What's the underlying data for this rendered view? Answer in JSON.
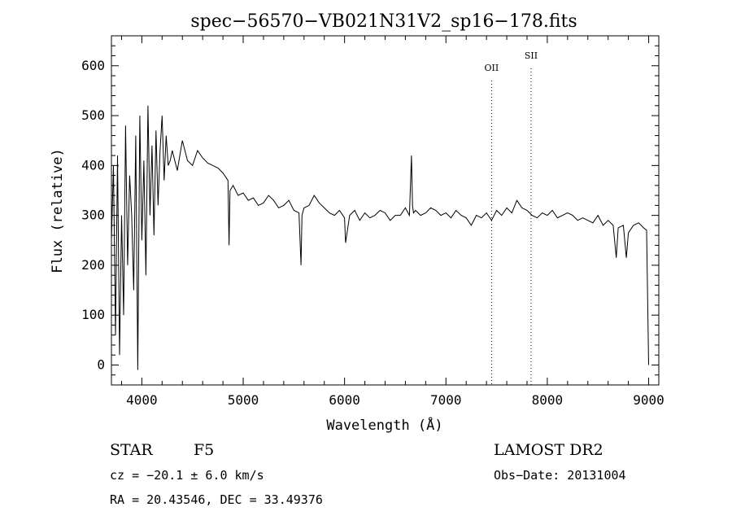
{
  "chart_data": {
    "type": "line",
    "title": "spec−56570−VB021N31V2_sp16−178.fits",
    "xlabel": "Wavelength (Å)",
    "ylabel": "Flux (relative)",
    "xlim": [
      3700,
      9100
    ],
    "ylim": [
      -40,
      660
    ],
    "xticks": [
      4000,
      5000,
      6000,
      7000,
      8000,
      9000
    ],
    "yticks": [
      0,
      100,
      200,
      300,
      400,
      500,
      600
    ],
    "grid": false,
    "lines": [
      {
        "label": "OII",
        "x": 7450
      },
      {
        "label": "SII",
        "x": 7840
      }
    ],
    "series": [
      {
        "x": [
          3700,
          3720,
          3740,
          3760,
          3780,
          3800,
          3820,
          3840,
          3860,
          3880,
          3900,
          3920,
          3940,
          3960,
          3980,
          4000,
          4020,
          4040,
          4060,
          4080,
          4100,
          4120,
          4140,
          4160,
          4180,
          4200,
          4220,
          4240,
          4260,
          4280,
          4300,
          4350,
          4400,
          4450,
          4500,
          4550,
          4600,
          4650,
          4700,
          4750,
          4800,
          4850,
          4860,
          4870,
          4900,
          4950,
          5000,
          5050,
          5100,
          5150,
          5200,
          5250,
          5300,
          5350,
          5400,
          5450,
          5500,
          5550,
          5570,
          5580,
          5600,
          5650,
          5700,
          5750,
          5800,
          5850,
          5900,
          5950,
          6000,
          6010,
          6050,
          6100,
          6150,
          6200,
          6250,
          6300,
          6350,
          6400,
          6450,
          6500,
          6550,
          6600,
          6640,
          6660,
          6670,
          6680,
          6700,
          6750,
          6800,
          6850,
          6900,
          6950,
          7000,
          7050,
          7100,
          7150,
          7200,
          7250,
          7300,
          7350,
          7400,
          7450,
          7500,
          7550,
          7600,
          7650,
          7700,
          7750,
          7800,
          7850,
          7900,
          7950,
          8000,
          8050,
          8100,
          8150,
          8200,
          8250,
          8300,
          8350,
          8400,
          8450,
          8500,
          8550,
          8600,
          8650,
          8680,
          8700,
          8750,
          8780,
          8800,
          8850,
          8900,
          8950,
          8980,
          9000
        ],
        "y": [
          250,
          400,
          60,
          420,
          20,
          300,
          100,
          480,
          200,
          380,
          300,
          150,
          460,
          -10,
          500,
          250,
          410,
          180,
          520,
          300,
          440,
          260,
          470,
          320,
          430,
          500,
          370,
          460,
          400,
          410,
          430,
          390,
          450,
          410,
          400,
          430,
          415,
          405,
          400,
          395,
          385,
          370,
          240,
          350,
          360,
          340,
          345,
          330,
          335,
          320,
          325,
          340,
          330,
          315,
          320,
          330,
          310,
          305,
          200,
          300,
          315,
          320,
          340,
          325,
          315,
          305,
          300,
          310,
          295,
          245,
          300,
          310,
          290,
          305,
          295,
          300,
          310,
          305,
          290,
          300,
          300,
          315,
          300,
          420,
          320,
          305,
          310,
          300,
          305,
          315,
          310,
          300,
          305,
          295,
          310,
          300,
          295,
          280,
          300,
          295,
          305,
          290,
          310,
          300,
          315,
          305,
          330,
          315,
          310,
          300,
          295,
          305,
          300,
          310,
          295,
          300,
          305,
          300,
          290,
          295,
          290,
          285,
          300,
          280,
          290,
          280,
          215,
          275,
          280,
          215,
          265,
          280,
          285,
          275,
          270,
          0
        ]
      }
    ]
  },
  "labels": {
    "object_class": "STAR",
    "subclass": "F5",
    "survey": "LAMOST DR2",
    "cz_line": "cz = −20.1 ± 6.0 km/s",
    "obs_date": "Obs−Date: 20131004",
    "coords": "RA =  20.43546, DEC =  33.49376"
  }
}
